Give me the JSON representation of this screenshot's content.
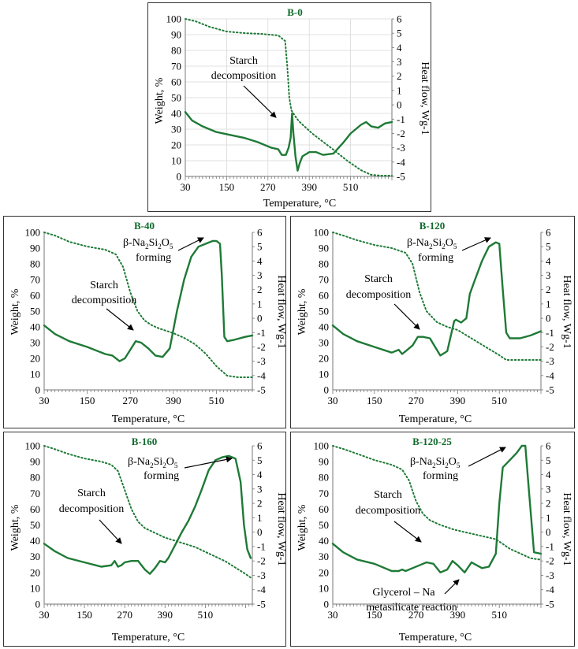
{
  "chart_data": [
    {
      "type": "line",
      "title": "B-0",
      "xlabel": "Temperature, °C",
      "ylabel": "Weight, %",
      "y2label": "Heat flow, Wg-1",
      "xlim": [
        30,
        630
      ],
      "ylim": [
        0,
        100
      ],
      "y2lim": [
        -5,
        6
      ],
      "x_ticks": [
        30,
        150,
        270,
        390,
        510
      ],
      "y_ticks": [
        0,
        10,
        20,
        30,
        40,
        50,
        60,
        70,
        80,
        90,
        100
      ],
      "y2_ticks": [
        6,
        5,
        4,
        3,
        2,
        1,
        0,
        -1,
        -2,
        -3,
        -4,
        -5
      ],
      "grid": true,
      "series": [
        {
          "name": "Weight",
          "axis": "left",
          "style": "dotted",
          "x": [
            30,
            60,
            100,
            150,
            200,
            250,
            300,
            320,
            326,
            332,
            338,
            344,
            350,
            360,
            380,
            400,
            430,
            460,
            500,
            540,
            570,
            600,
            630
          ],
          "values": [
            100,
            98.5,
            95,
            92,
            91,
            90.5,
            89.5,
            86,
            70,
            50,
            42,
            40,
            38,
            35,
            31,
            27,
            22,
            17,
            10,
            4,
            1,
            0.5,
            0.5
          ]
        },
        {
          "name": "Heat flow",
          "axis": "right",
          "style": "solid",
          "x": [
            30,
            50,
            80,
            120,
            160,
            200,
            240,
            280,
            300,
            310,
            315,
            322,
            330,
            336,
            340,
            344,
            350,
            356,
            362,
            370,
            390,
            410,
            430,
            460,
            490,
            510,
            540,
            555,
            570,
            590,
            610,
            630
          ],
          "values": [
            -0.5,
            -1.1,
            -1.5,
            -1.9,
            -2.1,
            -2.3,
            -2.6,
            -3.0,
            -3.1,
            -3.5,
            -3.5,
            -3.5,
            -3.0,
            -2.3,
            -0.6,
            -2.0,
            -3.6,
            -4.6,
            -4.1,
            -3.6,
            -3.3,
            -3.3,
            -3.5,
            -3.4,
            -2.6,
            -2.0,
            -1.4,
            -1.2,
            -1.5,
            -1.6,
            -1.3,
            -1.2
          ]
        }
      ],
      "annotations": [
        {
          "text_lines": [
            "Starch",
            "decomposition"
          ]
        }
      ]
    },
    {
      "type": "line",
      "title": "B-40",
      "xlabel": "Temperature, °C",
      "ylabel": "Weight, %",
      "y2label": "Heat flow, Wg-1",
      "xlim": [
        30,
        610
      ],
      "ylim": [
        0,
        100
      ],
      "y2lim": [
        -5,
        6
      ],
      "x_ticks": [
        30,
        150,
        270,
        390,
        510
      ],
      "y_ticks": [
        0,
        10,
        20,
        30,
        40,
        50,
        60,
        70,
        80,
        90,
        100
      ],
      "y2_ticks": [
        6,
        5,
        4,
        3,
        2,
        1,
        0,
        -1,
        -2,
        -3,
        -4,
        -5
      ],
      "grid": false,
      "series": [
        {
          "name": "Weight",
          "axis": "left",
          "style": "dotted",
          "x": [
            30,
            60,
            100,
            150,
            200,
            230,
            250,
            270,
            290,
            310,
            330,
            350,
            390,
            420,
            450,
            480,
            510,
            540,
            570,
            610
          ],
          "values": [
            100,
            98,
            94,
            91,
            89,
            86,
            78,
            62,
            50,
            44,
            41,
            39,
            36,
            33,
            29,
            23,
            15,
            9,
            8,
            8
          ]
        },
        {
          "name": "Heat flow",
          "axis": "right",
          "style": "solid",
          "x": [
            30,
            60,
            100,
            150,
            200,
            220,
            240,
            255,
            270,
            285,
            300,
            320,
            340,
            360,
            380,
            400,
            420,
            440,
            460,
            480,
            500,
            510,
            520,
            525,
            532,
            540,
            560,
            590,
            610
          ],
          "values": [
            -0.5,
            -1.1,
            -1.6,
            -2.0,
            -2.5,
            -2.6,
            -3.0,
            -2.8,
            -2.2,
            -1.6,
            -1.7,
            -2.1,
            -2.6,
            -2.7,
            -2.1,
            0.5,
            2.7,
            4.3,
            5.0,
            5.2,
            5.4,
            5.4,
            5.2,
            3.0,
            -1.3,
            -1.6,
            -1.5,
            -1.3,
            -1.2
          ]
        }
      ],
      "annotations": [
        {
          "text_lines": [
            "Starch",
            "decomposition"
          ]
        },
        {
          "text_lines": [
            "β-Na",
            "2",
            "Si",
            "2",
            "O",
            "5",
            "forming"
          ]
        }
      ]
    },
    {
      "type": "line",
      "title": "B-120",
      "xlabel": "Temperature, °C",
      "ylabel": "Weight, %",
      "y2label": "Heat flow, Wg-1",
      "xlim": [
        30,
        630
      ],
      "ylim": [
        0,
        100
      ],
      "y2lim": [
        -5,
        6
      ],
      "x_ticks": [
        30,
        150,
        270,
        390,
        510
      ],
      "y_ticks": [
        0,
        10,
        20,
        30,
        40,
        50,
        60,
        70,
        80,
        90,
        100
      ],
      "y2_ticks": [
        6,
        5,
        4,
        3,
        2,
        1,
        0,
        -1,
        -2,
        -3,
        -4,
        -5
      ],
      "grid": false,
      "series": [
        {
          "name": "Weight",
          "axis": "left",
          "style": "dotted",
          "x": [
            30,
            60,
            100,
            150,
            200,
            240,
            260,
            280,
            300,
            330,
            360,
            390,
            420,
            450,
            480,
            510,
            530,
            560,
            590,
            630
          ],
          "values": [
            100,
            98,
            95,
            92,
            90,
            87,
            80,
            62,
            50,
            43,
            40,
            38,
            34,
            30,
            26,
            22,
            19,
            19,
            19,
            19
          ]
        },
        {
          "name": "Heat flow",
          "axis": "right",
          "style": "solid",
          "x": [
            30,
            60,
            100,
            150,
            200,
            220,
            230,
            240,
            260,
            275,
            290,
            310,
            325,
            340,
            360,
            380,
            385,
            400,
            415,
            425,
            440,
            460,
            480,
            500,
            510,
            520,
            530,
            540,
            570,
            600,
            630
          ],
          "values": [
            -0.5,
            -1.1,
            -1.6,
            -2.0,
            -2.4,
            -2.2,
            -2.5,
            -2.3,
            -1.9,
            -1.3,
            -1.3,
            -1.4,
            -2.0,
            -2.6,
            -2.3,
            -0.2,
            -0.1,
            -0.3,
            0.0,
            1.7,
            2.7,
            4.0,
            5.0,
            5.3,
            5.2,
            2.0,
            -1.0,
            -1.4,
            -1.4,
            -1.2,
            -0.9
          ]
        }
      ],
      "annotations": [
        {
          "text_lines": [
            "Starch",
            "decomposition"
          ]
        },
        {
          "text_lines": [
            "β-Na",
            "2",
            "Si",
            "2",
            "O",
            "5",
            "forming"
          ]
        }
      ]
    },
    {
      "type": "line",
      "title": "B-160",
      "xlabel": "Temperature, °C",
      "ylabel": "Weight, %",
      "y2label": "Heat flow, Wg-1",
      "xlim": [
        30,
        650
      ],
      "ylim": [
        0,
        100
      ],
      "y2lim": [
        -5,
        6
      ],
      "x_ticks": [
        30,
        150,
        270,
        390,
        510
      ],
      "y_ticks": [
        0,
        10,
        20,
        30,
        40,
        50,
        60,
        70,
        80,
        90,
        100
      ],
      "y2_ticks": [
        6,
        5,
        4,
        3,
        2,
        1,
        0,
        -1,
        -2,
        -3,
        -4,
        -5
      ],
      "grid": false,
      "series": [
        {
          "name": "Weight",
          "axis": "left",
          "style": "dotted",
          "x": [
            30,
            60,
            100,
            150,
            200,
            230,
            250,
            270,
            290,
            310,
            330,
            360,
            390,
            420,
            450,
            480,
            510,
            540,
            570,
            600,
            630,
            650
          ],
          "values": [
            100,
            98,
            95,
            92,
            90,
            88,
            84,
            72,
            60,
            52,
            48,
            45,
            42,
            40,
            38,
            36,
            33,
            30,
            27,
            23,
            19,
            16
          ]
        },
        {
          "name": "Heat flow",
          "axis": "right",
          "style": "solid",
          "x": [
            30,
            60,
            100,
            150,
            200,
            230,
            240,
            250,
            260,
            270,
            290,
            310,
            330,
            345,
            360,
            375,
            390,
            400,
            420,
            440,
            460,
            480,
            500,
            520,
            540,
            560,
            580,
            600,
            615,
            625,
            635,
            645
          ],
          "values": [
            -0.8,
            -1.3,
            -1.8,
            -2.1,
            -2.4,
            -2.3,
            -2.0,
            -2.4,
            -2.3,
            -2.1,
            -2.0,
            -2.0,
            -2.6,
            -2.9,
            -2.5,
            -2.0,
            -2.1,
            -1.8,
            -0.9,
            0.0,
            0.8,
            1.8,
            3.0,
            4.3,
            5.0,
            5.2,
            5.3,
            5.1,
            3.5,
            0.5,
            -1.2,
            -1.8
          ]
        }
      ],
      "annotations": [
        {
          "text_lines": [
            "Starch",
            "decomposition"
          ]
        },
        {
          "text_lines": [
            "β-Na",
            "2",
            "Si",
            "2",
            "O",
            "5",
            "forming"
          ]
        }
      ]
    },
    {
      "type": "line",
      "title": "B-120-25",
      "xlabel": "Temperature, °C",
      "ylabel": "Weight, %",
      "y2label": "Heat flow, Wg-1",
      "xlim": [
        30,
        630
      ],
      "ylim": [
        0,
        100
      ],
      "y2lim": [
        -5,
        6
      ],
      "x_ticks": [
        30,
        150,
        270,
        390,
        510
      ],
      "y_ticks": [
        0,
        10,
        20,
        30,
        40,
        50,
        60,
        70,
        80,
        90,
        100
      ],
      "y2_ticks": [
        6,
        5,
        4,
        3,
        2,
        1,
        0,
        -1,
        -2,
        -3,
        -4,
        -5
      ],
      "grid": false,
      "series": [
        {
          "name": "Weight",
          "axis": "left",
          "style": "dotted",
          "x": [
            30,
            60,
            100,
            150,
            200,
            230,
            250,
            270,
            290,
            310,
            340,
            380,
            420,
            460,
            500,
            520,
            540,
            570,
            600,
            630
          ],
          "values": [
            100,
            98,
            95,
            91,
            88,
            85,
            78,
            65,
            57,
            53,
            50,
            47,
            45,
            43,
            41,
            38,
            35,
            32,
            29,
            28
          ]
        },
        {
          "name": "Heat flow",
          "axis": "right",
          "style": "solid",
          "x": [
            30,
            60,
            100,
            150,
            200,
            220,
            230,
            240,
            260,
            280,
            300,
            320,
            340,
            360,
            375,
            390,
            410,
            430,
            445,
            460,
            480,
            500,
            510,
            520,
            540,
            560,
            575,
            585,
            595,
            610,
            630
          ],
          "values": [
            -0.8,
            -1.4,
            -1.9,
            -2.2,
            -2.7,
            -2.7,
            -2.6,
            -2.7,
            -2.5,
            -2.3,
            -2.1,
            -2.2,
            -2.8,
            -2.6,
            -2.0,
            -2.3,
            -2.8,
            -2.1,
            -2.3,
            -2.5,
            -2.4,
            -1.5,
            2.0,
            4.5,
            5.0,
            5.5,
            6.0,
            6.0,
            3.0,
            -1.4,
            -1.5
          ]
        }
      ],
      "annotations": [
        {
          "text_lines": [
            "Starch",
            "decomposition"
          ]
        },
        {
          "text_lines": [
            "β-Na",
            "2",
            "Si",
            "2",
            "O",
            "5",
            "forming"
          ]
        },
        {
          "text_lines": [
            "Glycerol – Na",
            "metasilicate reaction"
          ]
        }
      ]
    }
  ]
}
